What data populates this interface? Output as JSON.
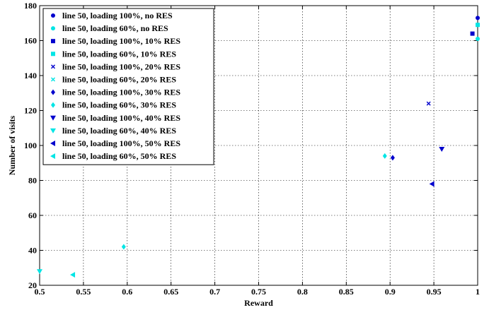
{
  "chart_data": {
    "type": "scatter",
    "title": "",
    "xlabel": "Reward",
    "ylabel": "Number of visits",
    "xlim": [
      0.5,
      1
    ],
    "ylim": [
      20,
      180
    ],
    "x_ticks": [
      "0.5",
      "0.55",
      "0.6",
      "0.65",
      "0.7",
      "0.75",
      "0.8",
      "0.85",
      "0.9",
      "0.95",
      "1"
    ],
    "y_ticks": [
      "20",
      "40",
      "60",
      "80",
      "100",
      "120",
      "140",
      "160",
      "180"
    ],
    "grid": true,
    "legend_position": "top-left",
    "series": [
      {
        "name": "line 50, loading 100%, no RES",
        "marker": "circle",
        "color": "#0000cd",
        "points": [
          [
            1.0,
            173
          ]
        ]
      },
      {
        "name": "line 50, loading 60%, no RES",
        "marker": "circle",
        "color": "#00e5e5",
        "points": [
          [
            1.0,
            161
          ]
        ]
      },
      {
        "name": "line 50, loading 100%, 10% RES",
        "marker": "square",
        "color": "#0000cd",
        "points": [
          [
            0.994,
            164
          ]
        ]
      },
      {
        "name": "line 50, loading 60%, 10% RES",
        "marker": "square",
        "color": "#00e5e5",
        "points": [
          [
            1.0,
            169
          ]
        ]
      },
      {
        "name": "line 50, loading 100%, 20% RES",
        "marker": "x",
        "color": "#0000cd",
        "points": [
          [
            0.944,
            124
          ]
        ]
      },
      {
        "name": "line 50, loading 60%, 20% RES",
        "marker": "x",
        "color": "#00e5e5",
        "points": []
      },
      {
        "name": "line 50, loading 100%, 30% RES",
        "marker": "diamond",
        "color": "#0000cd",
        "points": [
          [
            0.903,
            93
          ]
        ]
      },
      {
        "name": "line 50, loading 60%, 30% RES",
        "marker": "diamond",
        "color": "#00e5e5",
        "points": [
          [
            0.894,
            94
          ],
          [
            0.596,
            42
          ]
        ]
      },
      {
        "name": "line 50, loading 100%, 40% RES",
        "marker": "triangle-down",
        "color": "#0000cd",
        "points": [
          [
            0.959,
            98
          ]
        ]
      },
      {
        "name": "line 50, loading 60%, 40% RES",
        "marker": "triangle-down",
        "color": "#00e5e5",
        "points": [
          [
            0.5,
            28
          ]
        ]
      },
      {
        "name": "line 50, loading 100%, 50% RES",
        "marker": "triangle-left",
        "color": "#0000cd",
        "points": [
          [
            0.948,
            78
          ]
        ]
      },
      {
        "name": "line 50, loading 60%, 50% RES",
        "marker": "triangle-left",
        "color": "#00e5e5",
        "points": [
          [
            0.538,
            26
          ]
        ]
      }
    ]
  }
}
